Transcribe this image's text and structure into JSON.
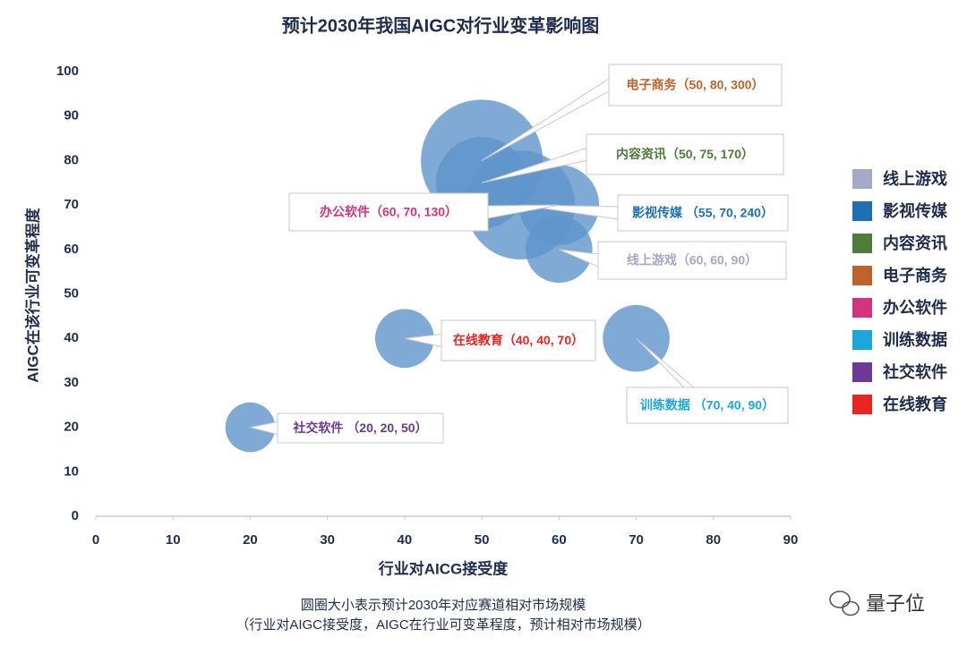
{
  "chart_data": {
    "type": "bubble",
    "title": "预计2030年我国AIGC对行业变革影响图",
    "xlabel": "行业对AICG接受度",
    "ylabel": "AIGC在该行业可变革程度",
    "xlim": [
      0,
      90
    ],
    "ylim": [
      0,
      100
    ],
    "xticks": [
      0,
      10,
      20,
      30,
      40,
      50,
      60,
      70,
      80,
      90
    ],
    "yticks": [
      0,
      10,
      20,
      30,
      40,
      50,
      60,
      70,
      80,
      90,
      100
    ],
    "bubble_color": "#5f95ca",
    "series": [
      {
        "name": "线上游戏",
        "color": "#a4a9c8",
        "x": 60,
        "y": 60,
        "size": 90,
        "label": "线上游戏（60, 60, 90）"
      },
      {
        "name": "影视传媒",
        "color": "#1f6fb5",
        "x": 55,
        "y": 70,
        "size": 240,
        "label": "影视传媒 （55, 70, 240）"
      },
      {
        "name": "内容资讯",
        "color": "#4e7d3a",
        "x": 50,
        "y": 75,
        "size": 170,
        "label": "内容资讯（50, 75, 170）"
      },
      {
        "name": "电子商务",
        "color": "#c0622b",
        "x": 50,
        "y": 80,
        "size": 300,
        "label": "电子商务（50, 80, 300）"
      },
      {
        "name": "办公软件",
        "color": "#d2347f",
        "x": 60,
        "y": 70,
        "size": 130,
        "label": "办公软件（60, 70, 130）"
      },
      {
        "name": "训练数据",
        "color": "#1ba7de",
        "x": 70,
        "y": 40,
        "size": 90,
        "label": "训练数据 （70, 40, 90）"
      },
      {
        "name": "社交软件",
        "color": "#6b3a96",
        "x": 20,
        "y": 20,
        "size": 50,
        "label": "社交软件 （20, 20, 50）"
      },
      {
        "name": "在线教育",
        "color": "#e8251f",
        "x": 40,
        "y": 40,
        "size": 70,
        "label": "在线教育（40, 40, 70）"
      }
    ],
    "notes": [
      "圆圈大小表示预计2030年对应赛道相对市场规模",
      "（行业对AIGC接受度，AIGC在行业可变革程度，预计相对市场规模）"
    ],
    "watermark": "量子位"
  }
}
